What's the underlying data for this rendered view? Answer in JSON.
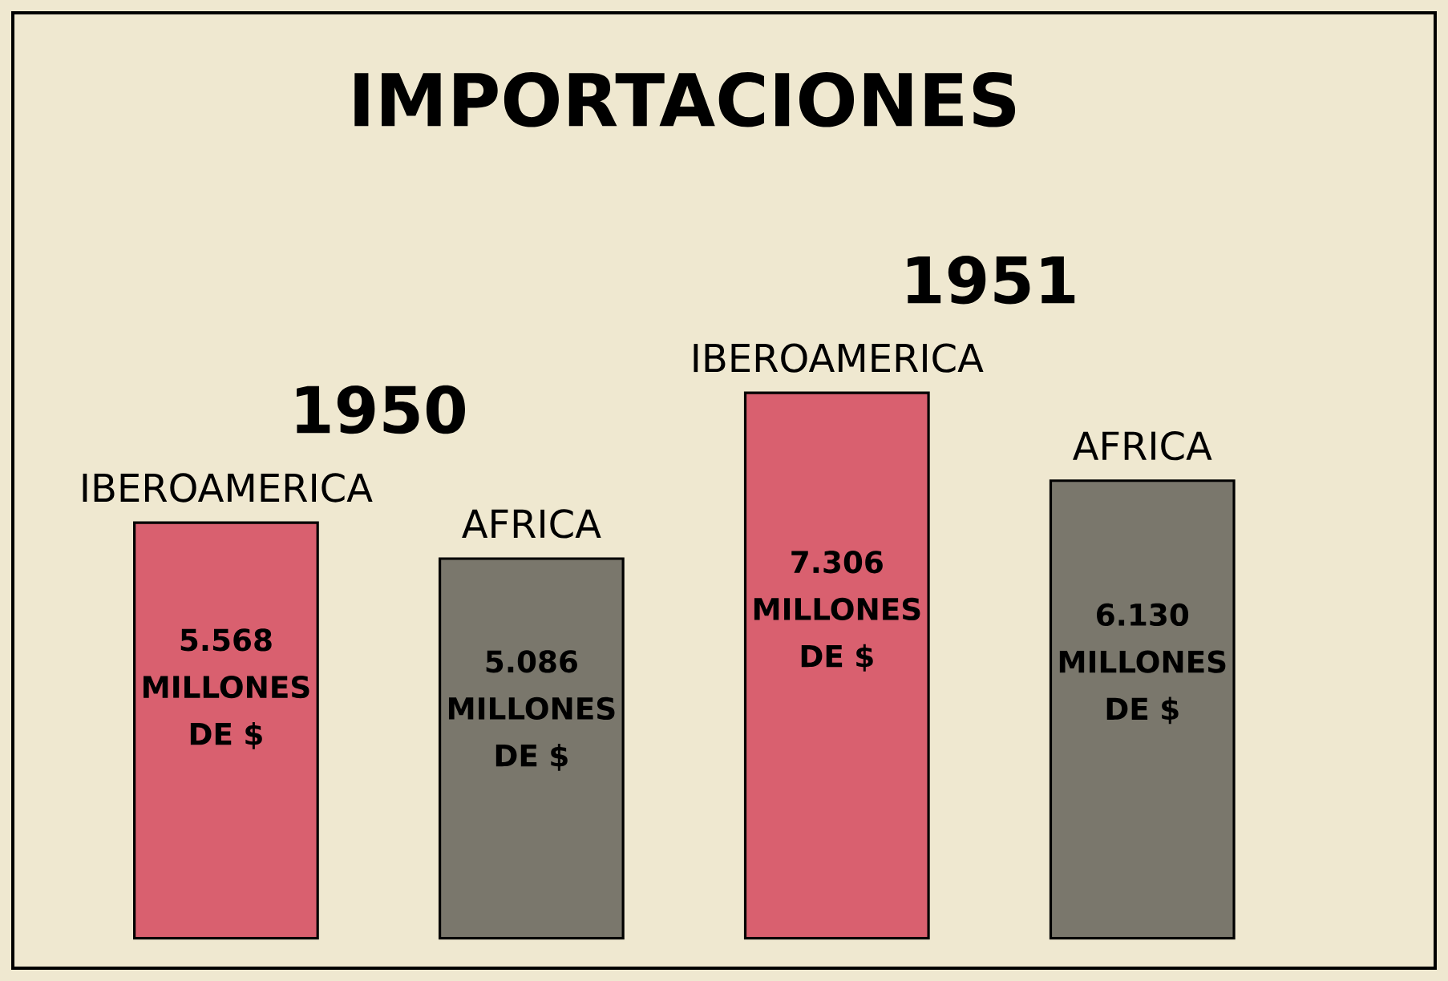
{
  "chart_data": {
    "type": "bar",
    "title": "IMPORTACIONES",
    "categories": [
      "IBEROAMERICA",
      "AFRICA",
      "IBEROAMERICA",
      "AFRICA"
    ],
    "values": [
      5568,
      5086,
      7306,
      6130
    ],
    "colors": [
      "#d9606f",
      "#7a776c",
      "#d9606f",
      "#7a776c"
    ],
    "value_labels": [
      "5.568 MILLONES DE $",
      "5.086 MILLONES DE $",
      "7.306 MILLONES DE $",
      "6.130 MILLONES DE $"
    ],
    "annotations": [
      "1950",
      "1951"
    ]
  }
}
